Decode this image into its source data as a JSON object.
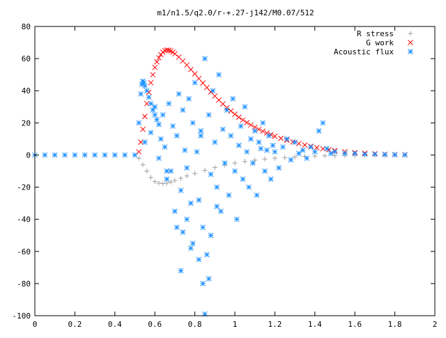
{
  "chart_data": {
    "type": "scatter",
    "title": "m1/n1.5/q2.0/r-+.27-j142/M0.07/512",
    "xlabel": "",
    "ylabel": "",
    "xlim": [
      0,
      2
    ],
    "ylim": [
      -100,
      80
    ],
    "x_ticks": [
      "0",
      "0.2",
      "0.4",
      "0.6",
      "0.8",
      "1",
      "1.2",
      "1.4",
      "1.6",
      "1.8",
      "2"
    ],
    "y_ticks": [
      "80",
      "60",
      "40",
      "20",
      "0",
      "-20",
      "-40",
      "-60",
      "-80",
      "-100"
    ],
    "grid": false,
    "legend_position": "top-right",
    "series": [
      {
        "name": "R stress",
        "marker": "+",
        "color": "#a0a0a0",
        "x": [
          0.0,
          0.05,
          0.1,
          0.15,
          0.2,
          0.25,
          0.3,
          0.35,
          0.4,
          0.45,
          0.5,
          0.52,
          0.54,
          0.56,
          0.58,
          0.6,
          0.62,
          0.64,
          0.66,
          0.68,
          0.7,
          0.73,
          0.76,
          0.8,
          0.85,
          0.9,
          0.95,
          1.0,
          1.05,
          1.1,
          1.15,
          1.2,
          1.25,
          1.3,
          1.35,
          1.4,
          1.45,
          1.5,
          1.55,
          1.6,
          1.65,
          1.7,
          1.75,
          1.8,
          1.85
        ],
        "y": [
          0,
          0,
          0,
          0,
          0,
          0,
          0,
          0,
          0,
          0,
          0,
          -2,
          -6,
          -10,
          -14,
          -16.5,
          -17.5,
          -17.8,
          -17.5,
          -16.8,
          -15.8,
          -14.5,
          -13,
          -11.5,
          -9.5,
          -7.8,
          -6.3,
          -5,
          -4,
          -3.2,
          -2.5,
          -2,
          -1.6,
          -1.2,
          -0.9,
          -0.7,
          -0.5,
          -0.4,
          -0.3,
          -0.2,
          -0.15,
          -0.1,
          -0.05,
          0,
          0
        ]
      },
      {
        "name": "G work",
        "marker": "x",
        "color": "#ff0000",
        "x": [
          0.52,
          0.53,
          0.54,
          0.55,
          0.56,
          0.57,
          0.58,
          0.59,
          0.6,
          0.61,
          0.62,
          0.63,
          0.64,
          0.65,
          0.66,
          0.67,
          0.68,
          0.69,
          0.7,
          0.72,
          0.74,
          0.76,
          0.78,
          0.8,
          0.82,
          0.84,
          0.86,
          0.88,
          0.9,
          0.92,
          0.94,
          0.96,
          0.98,
          1.0,
          1.02,
          1.04,
          1.06,
          1.08,
          1.1,
          1.12,
          1.14,
          1.16,
          1.18,
          1.2,
          1.23,
          1.26,
          1.29,
          1.32,
          1.35,
          1.38,
          1.41,
          1.44,
          1.47,
          1.5,
          1.55,
          1.6,
          1.65,
          1.7,
          1.75,
          1.8,
          1.85
        ],
        "y": [
          2,
          8,
          16,
          24,
          32,
          39,
          45,
          50,
          54.5,
          58,
          60.5,
          62.5,
          64,
          65,
          65.3,
          65.2,
          64.8,
          64,
          63,
          61,
          58.5,
          56,
          53.2,
          50.5,
          47.6,
          44.8,
          42,
          39.3,
          36.7,
          34.2,
          31.8,
          29.5,
          27.4,
          25.4,
          23.5,
          21.8,
          20.2,
          18.7,
          17.3,
          16,
          14.8,
          13.7,
          12.7,
          11.7,
          10.4,
          9.2,
          8.1,
          7.1,
          6.2,
          5.4,
          4.6,
          3.9,
          3.3,
          2.8,
          2.1,
          1.5,
          1.1,
          0.8,
          0.5,
          0.3,
          0.2
        ]
      },
      {
        "name": "Acoustic flux",
        "marker": "*",
        "color": "#1e90ff",
        "x": [
          0.0,
          0.05,
          0.1,
          0.15,
          0.2,
          0.25,
          0.3,
          0.35,
          0.4,
          0.45,
          0.5,
          0.52,
          0.53,
          0.535,
          0.54,
          0.545,
          0.55,
          0.56,
          0.57,
          0.58,
          0.59,
          0.6,
          0.61,
          0.62,
          0.55,
          0.58,
          0.6,
          0.62,
          0.63,
          0.64,
          0.65,
          0.66,
          0.67,
          0.68,
          0.69,
          0.7,
          0.71,
          0.72,
          0.73,
          0.74,
          0.75,
          0.76,
          0.77,
          0.78,
          0.79,
          0.8,
          0.81,
          0.82,
          0.83,
          0.84,
          0.85,
          0.86,
          0.87,
          0.88,
          0.89,
          0.9,
          0.91,
          0.92,
          0.93,
          0.94,
          0.95,
          0.96,
          0.97,
          0.98,
          0.99,
          1.0,
          1.01,
          1.02,
          1.03,
          1.04,
          1.05,
          1.06,
          1.07,
          1.08,
          1.09,
          1.1,
          1.11,
          1.12,
          1.13,
          1.14,
          1.15,
          1.16,
          1.17,
          1.18,
          1.19,
          1.2,
          1.22,
          1.24,
          1.26,
          1.28,
          1.3,
          1.32,
          1.34,
          1.36,
          1.38,
          1.4,
          1.42,
          1.44,
          1.46,
          1.48,
          1.5,
          1.55,
          1.6,
          1.65,
          1.7,
          1.75,
          1.8,
          1.85,
          0.85,
          0.84,
          0.73,
          0.78,
          0.82,
          0.87,
          0.66,
          0.76,
          0.71,
          0.88,
          0.91,
          0.79,
          0.74,
          0.83
        ],
        "y": [
          0,
          0,
          0,
          0,
          0,
          0,
          0,
          0,
          0,
          0,
          0,
          20,
          38,
          44,
          46,
          45,
          43,
          40,
          36,
          32,
          28,
          25,
          22,
          19,
          8,
          14,
          30,
          -2,
          10,
          25,
          5,
          -15,
          32,
          -10,
          18,
          -35,
          12,
          38,
          -22,
          28,
          3,
          -8,
          35,
          -30,
          20,
          45,
          2,
          -28,
          15,
          -45,
          60,
          -62,
          25,
          -12,
          40,
          8,
          -20,
          50,
          -35,
          16,
          -5,
          28,
          -25,
          12,
          35,
          -10,
          -40,
          6,
          18,
          -15,
          30,
          2,
          -20,
          10,
          -5,
          15,
          -25,
          8,
          4,
          20,
          -10,
          3,
          12,
          -15,
          6,
          2,
          -8,
          5,
          10,
          -3,
          8,
          1,
          3,
          -2,
          5,
          2,
          15,
          20,
          4,
          1,
          2,
          1,
          1,
          0.5,
          0.5,
          0.3,
          0.2,
          0.1,
          -99,
          -80,
          -72,
          -58,
          -65,
          -77,
          -10,
          -40,
          -45,
          -50,
          -32,
          -55,
          -48,
          12
        ]
      }
    ]
  }
}
